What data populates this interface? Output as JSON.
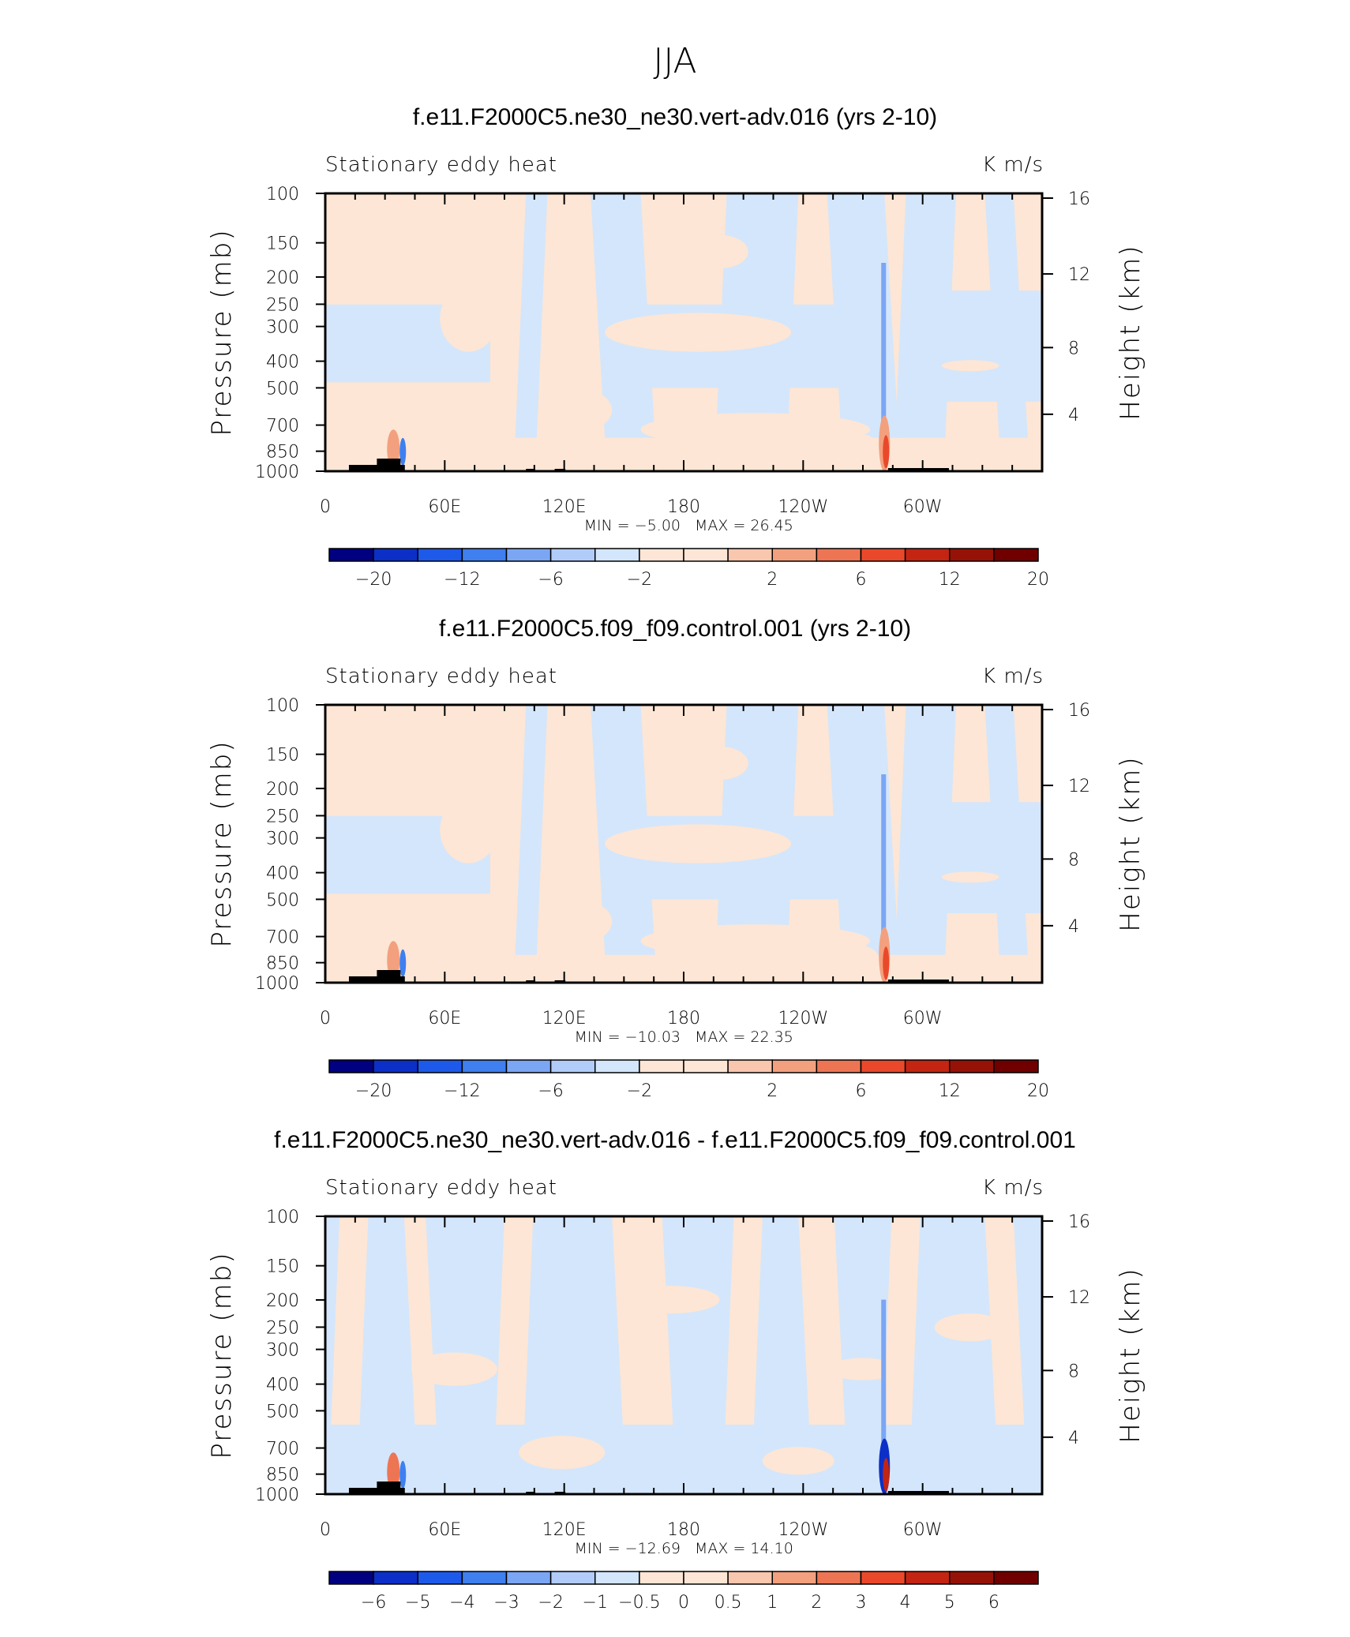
{
  "figure": {
    "title": "JJA"
  },
  "palette": {
    "colors": [
      "#000080",
      "#0c2fc8",
      "#1e5aea",
      "#3f7fef",
      "#7ba6f4",
      "#b1ccf8",
      "#d4e6fb",
      "#fde6d5",
      "#f9c6ae",
      "#f3a07e",
      "#ee7554",
      "#e9492a",
      "#c32512",
      "#961207",
      "#700000"
    ],
    "terrain": "#000000"
  },
  "chart_data": [
    {
      "type": "heatmap",
      "panel_title": "f.e11.F2000C5.ne30_ne30.vert-adv.016 (yrs 2-10)",
      "left_label": "Stationary eddy heat",
      "right_label": "K m/s",
      "ylabel": "Pressure (mb)",
      "y2label": "Height (km)",
      "x_ticks": [
        "0",
        "60E",
        "120E",
        "180",
        "120W",
        "60W"
      ],
      "y_ticks": [
        "100",
        "150",
        "200",
        "250",
        "300",
        "400",
        "500",
        "700",
        "850",
        "1000"
      ],
      "y2_ticks": [
        "16",
        "12",
        "8",
        "4"
      ],
      "minmax": {
        "min_label": "MIN =",
        "min": "−5.00",
        "max_label": "MAX =",
        "max": "26.45"
      },
      "colorbar": {
        "labels": [
          "−20",
          "−12",
          "−6",
          "−2",
          "2",
          "6",
          "12",
          "20"
        ]
      }
    },
    {
      "type": "heatmap",
      "panel_title": "f.e11.F2000C5.f09_f09.control.001 (yrs 2-10)",
      "left_label": "Stationary eddy heat",
      "right_label": "K m/s",
      "ylabel": "Pressure (mb)",
      "y2label": "Height (km)",
      "x_ticks": [
        "0",
        "60E",
        "120E",
        "180",
        "120W",
        "60W"
      ],
      "y_ticks": [
        "100",
        "150",
        "200",
        "250",
        "300",
        "400",
        "500",
        "700",
        "850",
        "1000"
      ],
      "y2_ticks": [
        "16",
        "12",
        "8",
        "4"
      ],
      "minmax": {
        "min_label": "MIN =",
        "min": "−10.03",
        "max_label": "MAX =",
        "max": "22.35"
      },
      "colorbar": {
        "labels": [
          "−20",
          "−12",
          "−6",
          "−2",
          "2",
          "6",
          "12",
          "20"
        ]
      }
    },
    {
      "type": "heatmap",
      "panel_title": "f.e11.F2000C5.ne30_ne30.vert-adv.016 - f.e11.F2000C5.f09_f09.control.001",
      "left_label": "Stationary eddy heat",
      "right_label": "K m/s",
      "ylabel": "Pressure (mb)",
      "y2label": "Height (km)",
      "x_ticks": [
        "0",
        "60E",
        "120E",
        "180",
        "120W",
        "60W"
      ],
      "y_ticks": [
        "100",
        "150",
        "200",
        "250",
        "300",
        "400",
        "500",
        "700",
        "850",
        "1000"
      ],
      "y2_ticks": [
        "16",
        "12",
        "8",
        "4"
      ],
      "minmax": {
        "min_label": "MIN =",
        "min": "−12.69",
        "max_label": "MAX =",
        "max": "14.10"
      },
      "colorbar": {
        "labels": [
          "−6",
          "−5",
          "−4",
          "−3",
          "−2",
          "−1",
          "−0.5",
          "0",
          "0.5",
          "1",
          "2",
          "3",
          "4",
          "5",
          "6"
        ]
      }
    }
  ]
}
